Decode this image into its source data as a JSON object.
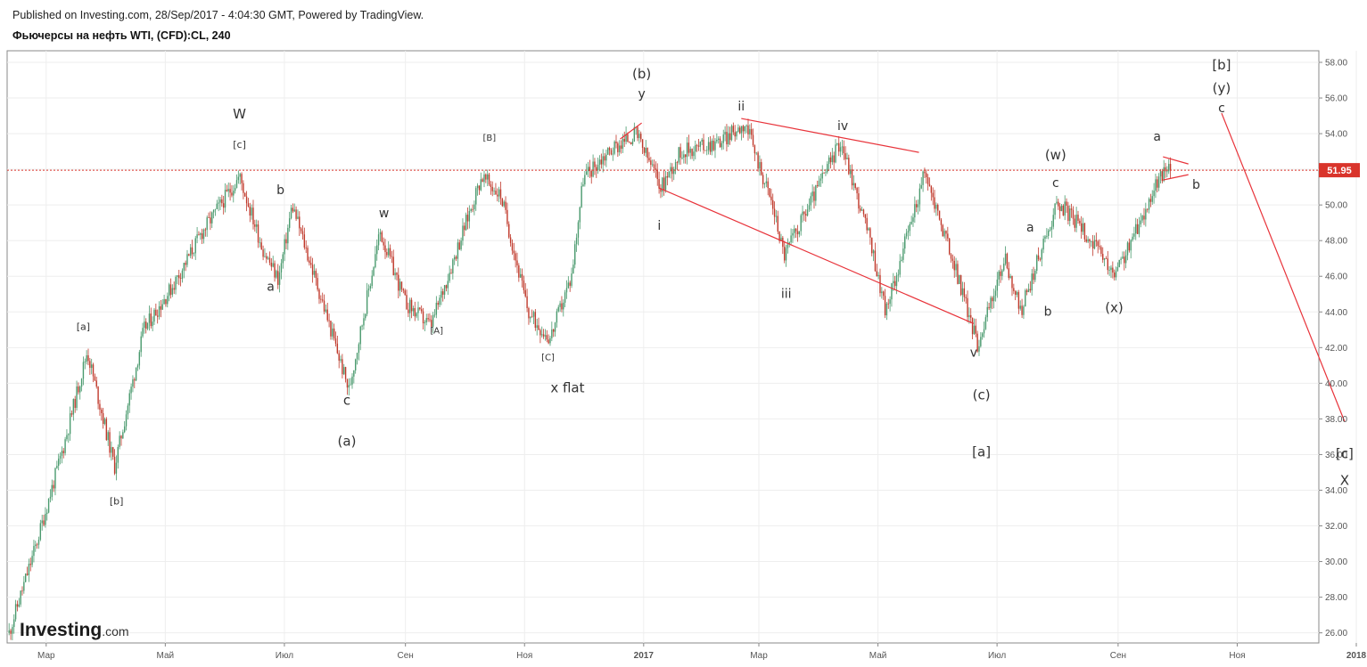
{
  "header": {
    "published": "Published on Investing.com, 28/Sep/2017 - 4:04:30 GMT, Powered by TradingView.",
    "symbol": "Фьючерсы на нефть WTI, (CFD):CL, 240"
  },
  "branding": {
    "logo_main": "Investing",
    "logo_suffix": ".com"
  },
  "colors": {
    "up_candle": "#4a9a6e",
    "down_candle": "#c0392b",
    "wave_line": "#e8333a",
    "price_line": "#d9342b",
    "grid": "#eeeeee",
    "axis_text": "#555555",
    "wave_label": "#333333"
  },
  "chart_data": {
    "type": "candlestick",
    "ylim": [
      25.5,
      58.5
    ],
    "y_ticks": [
      "58.00",
      "56.00",
      "54.00",
      "52.00",
      "50.00",
      "48.00",
      "46.00",
      "44.00",
      "42.00",
      "40.00",
      "38.00",
      "36.00",
      "34.00",
      "32.00",
      "30.00",
      "28.00",
      "26.00"
    ],
    "current_price": "51.95",
    "x_ticks": [
      "Мар",
      "Май",
      "Июл",
      "Сен",
      "Ноя",
      "2017",
      "Мар",
      "Май",
      "Июл",
      "Сен",
      "Ноя",
      "2018"
    ],
    "price_path": [
      [
        "2016-02-11",
        26.0
      ],
      [
        "2016-02-25",
        31.0
      ],
      [
        "2016-03-10",
        36.5
      ],
      [
        "2016-03-22",
        41.8
      ],
      [
        "2016-04-05",
        35.3
      ],
      [
        "2016-04-20",
        43.0
      ],
      [
        "2016-05-05",
        45.5
      ],
      [
        "2016-05-20",
        48.5
      ],
      [
        "2016-06-08",
        51.6
      ],
      [
        "2016-06-20",
        47.5
      ],
      [
        "2016-06-28",
        45.8
      ],
      [
        "2016-07-05",
        50.0
      ],
      [
        "2016-07-22",
        44.0
      ],
      [
        "2016-08-03",
        39.6
      ],
      [
        "2016-08-19",
        48.5
      ],
      [
        "2016-09-01",
        44.5
      ],
      [
        "2016-09-14",
        43.2
      ],
      [
        "2016-10-10",
        51.6
      ],
      [
        "2016-10-20",
        50.5
      ],
      [
        "2016-11-03",
        43.9
      ],
      [
        "2016-11-14",
        42.5
      ],
      [
        "2016-11-25",
        46.0
      ],
      [
        "2016-12-01",
        51.5
      ],
      [
        "2016-12-14",
        53.0
      ],
      [
        "2016-12-28",
        54.0
      ],
      [
        "2017-01-10",
        51.0
      ],
      [
        "2017-01-20",
        53.0
      ],
      [
        "2017-02-10",
        53.6
      ],
      [
        "2017-02-22",
        54.6
      ],
      [
        "2017-03-08",
        50.0
      ],
      [
        "2017-03-14",
        47.2
      ],
      [
        "2017-04-12",
        53.6
      ],
      [
        "2017-04-27",
        48.0
      ],
      [
        "2017-05-05",
        44.0
      ],
      [
        "2017-05-25",
        51.8
      ],
      [
        "2017-06-10",
        46.3
      ],
      [
        "2017-06-21",
        42.2
      ],
      [
        "2017-07-05",
        47.0
      ],
      [
        "2017-07-13",
        44.0
      ],
      [
        "2017-08-01",
        50.2
      ],
      [
        "2017-08-15",
        48.5
      ],
      [
        "2017-08-30",
        46.0
      ],
      [
        "2017-09-08",
        48.0
      ],
      [
        "2017-09-20",
        51.0
      ],
      [
        "2017-09-26",
        52.2
      ],
      [
        "2017-09-28",
        51.95
      ]
    ],
    "wave_labels": [
      {
        "text": "W",
        "date": "2016-06-08",
        "price": 54.85,
        "size": 15
      },
      {
        "text": "[c]",
        "date": "2016-06-08",
        "price": 53.2,
        "size": 11
      },
      {
        "text": "b",
        "date": "2016-06-29",
        "price": 50.6,
        "size": 14
      },
      {
        "text": "a",
        "date": "2016-06-24",
        "price": 45.2,
        "size": 14
      },
      {
        "text": "w",
        "date": "2016-08-21",
        "price": 49.3,
        "size": 14
      },
      {
        "text": "[a]",
        "date": "2016-03-20",
        "price": 43.0,
        "size": 11
      },
      {
        "text": "[b]",
        "date": "2016-04-06",
        "price": 33.2,
        "size": 11
      },
      {
        "text": "c",
        "date": "2016-08-02",
        "price": 38.8,
        "size": 15
      },
      {
        "text": "(a)",
        "date": "2016-08-02",
        "price": 36.5,
        "size": 15
      },
      {
        "text": "[A]",
        "date": "2016-09-17",
        "price": 42.8,
        "size": 10
      },
      {
        "text": "[B]",
        "date": "2016-10-14",
        "price": 53.6,
        "size": 10
      },
      {
        "text": "[C]",
        "date": "2016-11-13",
        "price": 41.3,
        "size": 10
      },
      {
        "text": "x flat",
        "date": "2016-11-23",
        "price": 39.5,
        "size": 15
      },
      {
        "text": "(b)",
        "date": "2016-12-31",
        "price": 57.1,
        "size": 15
      },
      {
        "text": "y",
        "date": "2016-12-31",
        "price": 56.0,
        "size": 14
      },
      {
        "text": "i",
        "date": "2017-01-09",
        "price": 48.6,
        "size": 14
      },
      {
        "text": "ii",
        "date": "2017-02-20",
        "price": 55.3,
        "size": 14
      },
      {
        "text": "iii",
        "date": "2017-03-15",
        "price": 44.8,
        "size": 14
      },
      {
        "text": "iv",
        "date": "2017-04-13",
        "price": 54.2,
        "size": 14
      },
      {
        "text": "v",
        "date": "2017-06-19",
        "price": 41.5,
        "size": 14
      },
      {
        "text": "(c)",
        "date": "2017-06-23",
        "price": 39.1,
        "size": 15
      },
      {
        "text": "[a]",
        "date": "2017-06-23",
        "price": 35.9,
        "size": 15
      },
      {
        "text": "(w)",
        "date": "2017-07-31",
        "price": 52.55,
        "size": 15
      },
      {
        "text": "c",
        "date": "2017-07-31",
        "price": 51.0,
        "size": 14
      },
      {
        "text": "a",
        "date": "2017-07-18",
        "price": 48.5,
        "size": 14
      },
      {
        "text": "b",
        "date": "2017-07-27",
        "price": 43.8,
        "size": 14
      },
      {
        "text": "(x)",
        "date": "2017-08-30",
        "price": 44.0,
        "size": 15
      },
      {
        "text": "a",
        "date": "2017-09-21",
        "price": 53.6,
        "size": 14
      },
      {
        "text": "b",
        "date": "2017-10-11",
        "price": 50.9,
        "size": 14
      },
      {
        "text": "[b]",
        "date": "2017-10-24",
        "price": 57.6,
        "size": 15
      },
      {
        "text": "(y)",
        "date": "2017-10-24",
        "price": 56.3,
        "size": 15
      },
      {
        "text": "c",
        "date": "2017-10-24",
        "price": 55.2,
        "size": 14
      },
      {
        "text": "[c]",
        "date": "2017-12-26",
        "price": 35.8,
        "size": 15
      },
      {
        "text": "X",
        "date": "2017-12-26",
        "price": 34.3,
        "size": 15
      }
    ],
    "trend_lines": [
      [
        [
          "2016-12-20",
          53.7
        ],
        [
          "2016-12-31",
          54.6
        ]
      ],
      [
        [
          "2017-01-09",
          50.95
        ],
        [
          "2017-06-19",
          43.35
        ]
      ],
      [
        [
          "2017-02-20",
          54.85
        ],
        [
          "2017-05-22",
          52.95
        ]
      ],
      [
        [
          "2017-09-24",
          52.7
        ],
        [
          "2017-10-07",
          52.3
        ]
      ],
      [
        [
          "2017-09-24",
          51.4
        ],
        [
          "2017-10-07",
          51.7
        ]
      ],
      [
        [
          "2017-10-24",
          55.15
        ],
        [
          "2017-12-26",
          37.85
        ]
      ]
    ]
  }
}
